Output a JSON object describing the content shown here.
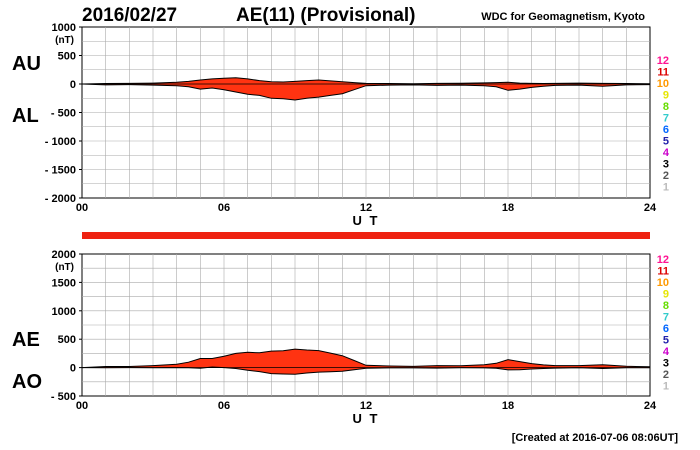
{
  "header": {
    "date": "2016/02/27",
    "title": "AE(11) (Provisional)",
    "credit": "WDC for Geomagnetism, Kyoto",
    "created": "[Created at 2016-07-06 08:06UT]"
  },
  "station_labels": [
    "12",
    "11",
    "10",
    "9",
    "8",
    "7",
    "6",
    "5",
    "4",
    "3",
    "2",
    "1"
  ],
  "station_colors": [
    "#ff1493",
    "#dd0000",
    "#ff9900",
    "#e6e600",
    "#66dd00",
    "#33cccc",
    "#0066ff",
    "#2222aa",
    "#cc00cc",
    "#000000",
    "#555555",
    "#bbbbbb"
  ],
  "coverage_bar_color": "#ee2211",
  "chart_data": [
    {
      "type": "area",
      "panel": "top",
      "unit": "(nT)",
      "series_labels": [
        "AU",
        "AL"
      ],
      "fill_color": "#ff3311",
      "xlabel": "U T",
      "x_ticks": [
        "00",
        "06",
        "12",
        "18",
        "24"
      ],
      "xlim": [
        0,
        24
      ],
      "ylim": [
        -2000,
        1000
      ],
      "y_ticks": [
        1000,
        500,
        0,
        -500,
        -1000,
        -1500,
        -2000
      ],
      "y_tick_labels": [
        "1000",
        "500",
        "0",
        "- 500",
        "- 1000",
        "- 1500",
        "- 2000"
      ],
      "grid": true,
      "x": [
        0,
        1,
        2,
        3,
        4,
        4.5,
        5,
        5.5,
        6,
        6.5,
        7,
        7.5,
        8,
        8.5,
        9,
        9.5,
        10,
        10.5,
        11,
        11.5,
        12,
        13,
        14,
        15,
        16,
        17,
        17.5,
        18,
        18.5,
        19,
        19.5,
        20,
        21,
        22,
        23,
        24
      ],
      "upper": [
        0,
        8,
        10,
        15,
        30,
        45,
        70,
        90,
        100,
        110,
        90,
        60,
        40,
        35,
        45,
        60,
        70,
        55,
        40,
        25,
        10,
        8,
        6,
        10,
        12,
        20,
        25,
        30,
        15,
        10,
        8,
        10,
        15,
        10,
        8,
        5
      ],
      "lower": [
        0,
        -15,
        -10,
        -20,
        -30,
        -50,
        -90,
        -70,
        -100,
        -140,
        -180,
        -200,
        -250,
        -260,
        -280,
        -250,
        -230,
        -200,
        -170,
        -100,
        -30,
        -20,
        -15,
        -25,
        -20,
        -30,
        -50,
        -110,
        -90,
        -60,
        -40,
        -25,
        -20,
        -40,
        -15,
        -10
      ]
    },
    {
      "type": "area",
      "panel": "bottom",
      "unit": "(nT)",
      "series_labels": [
        "AE",
        "AO"
      ],
      "fill_color": "#ff3311",
      "xlabel": "U T",
      "x_ticks": [
        "00",
        "06",
        "12",
        "18",
        "24"
      ],
      "xlim": [
        0,
        24
      ],
      "ylim": [
        -500,
        2000
      ],
      "y_ticks": [
        2000,
        1500,
        1000,
        500,
        0,
        -500
      ],
      "y_tick_labels": [
        "2000",
        "1500",
        "1000",
        "500",
        "0",
        "- 500"
      ],
      "grid": true,
      "x": [
        0,
        1,
        2,
        3,
        4,
        4.5,
        5,
        5.5,
        6,
        6.5,
        7,
        7.5,
        8,
        8.5,
        9,
        9.5,
        10,
        10.5,
        11,
        11.5,
        12,
        13,
        14,
        15,
        16,
        17,
        17.5,
        18,
        18.5,
        19,
        19.5,
        20,
        21,
        22,
        23,
        24
      ],
      "upper": [
        0,
        20,
        20,
        35,
        60,
        95,
        160,
        160,
        200,
        250,
        270,
        260,
        290,
        295,
        325,
        310,
        300,
        255,
        210,
        125,
        40,
        28,
        21,
        35,
        32,
        50,
        75,
        140,
        105,
        70,
        48,
        35,
        35,
        50,
        23,
        15
      ],
      "lower": [
        0,
        -4,
        0,
        -3,
        0,
        -3,
        -10,
        10,
        0,
        -15,
        -45,
        -70,
        -105,
        -113,
        -118,
        -95,
        -80,
        -73,
        -65,
        -38,
        -10,
        -6,
        -5,
        -8,
        -4,
        -5,
        -13,
        -40,
        -38,
        -25,
        -16,
        -8,
        -3,
        -15,
        -4,
        -3
      ]
    }
  ]
}
